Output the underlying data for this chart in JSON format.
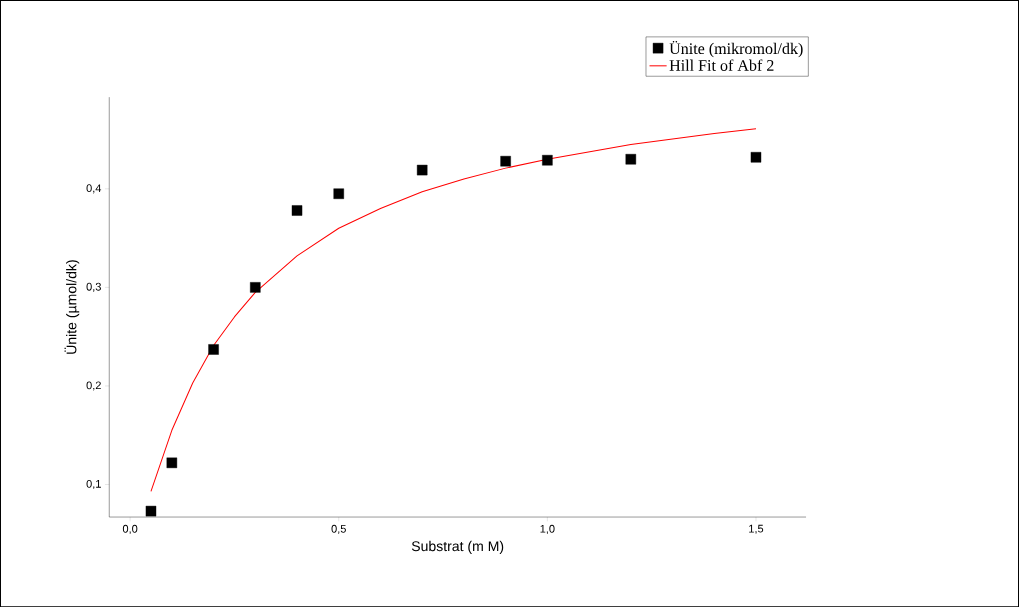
{
  "chart_data": {
    "type": "scatter",
    "xlabel": "Substrat (m M)",
    "ylabel": "Ünite (µmol/dk)",
    "xlim": [
      -0.05,
      1.62
    ],
    "ylim": [
      0.067,
      0.493
    ],
    "xticks": [
      {
        "value": 0,
        "label": "0,0"
      },
      {
        "value": 0.5,
        "label": "0,5"
      },
      {
        "value": 1,
        "label": "1,0"
      },
      {
        "value": 1.5,
        "label": "1,5"
      }
    ],
    "yticks": [
      {
        "value": 0.1,
        "label": "0,1"
      },
      {
        "value": 0.2,
        "label": "0,2"
      },
      {
        "value": 0.3,
        "label": "0,3"
      },
      {
        "value": 0.4,
        "label": "0,4"
      }
    ],
    "grid": false,
    "legend": "top right",
    "series": [
      {
        "name": "Ünite (mikromol/dk)",
        "marker": "square",
        "color": "#000000",
        "x": [
          0.05,
          0.1,
          0.2,
          0.3,
          0.4,
          0.5,
          0.7,
          0.9,
          1.0,
          1.2,
          1.5
        ],
        "values": [
          0.073,
          0.122,
          0.237,
          0.3,
          0.378,
          0.395,
          0.419,
          0.428,
          0.429,
          0.43,
          0.432
        ]
      },
      {
        "name": "Hill Fit of Abf 2",
        "type": "line",
        "marker": "none",
        "color": "#ff0000",
        "x": [
          0.05,
          0.1,
          0.15,
          0.2,
          0.25,
          0.3,
          0.4,
          0.5,
          0.6,
          0.7,
          0.8,
          0.9,
          1.0,
          1.2,
          1.4,
          1.5
        ],
        "values": [
          0.093,
          0.155,
          0.203,
          0.241,
          0.27,
          0.295,
          0.332,
          0.36,
          0.38,
          0.397,
          0.41,
          0.421,
          0.43,
          0.445,
          0.456,
          0.461
        ]
      }
    ]
  }
}
